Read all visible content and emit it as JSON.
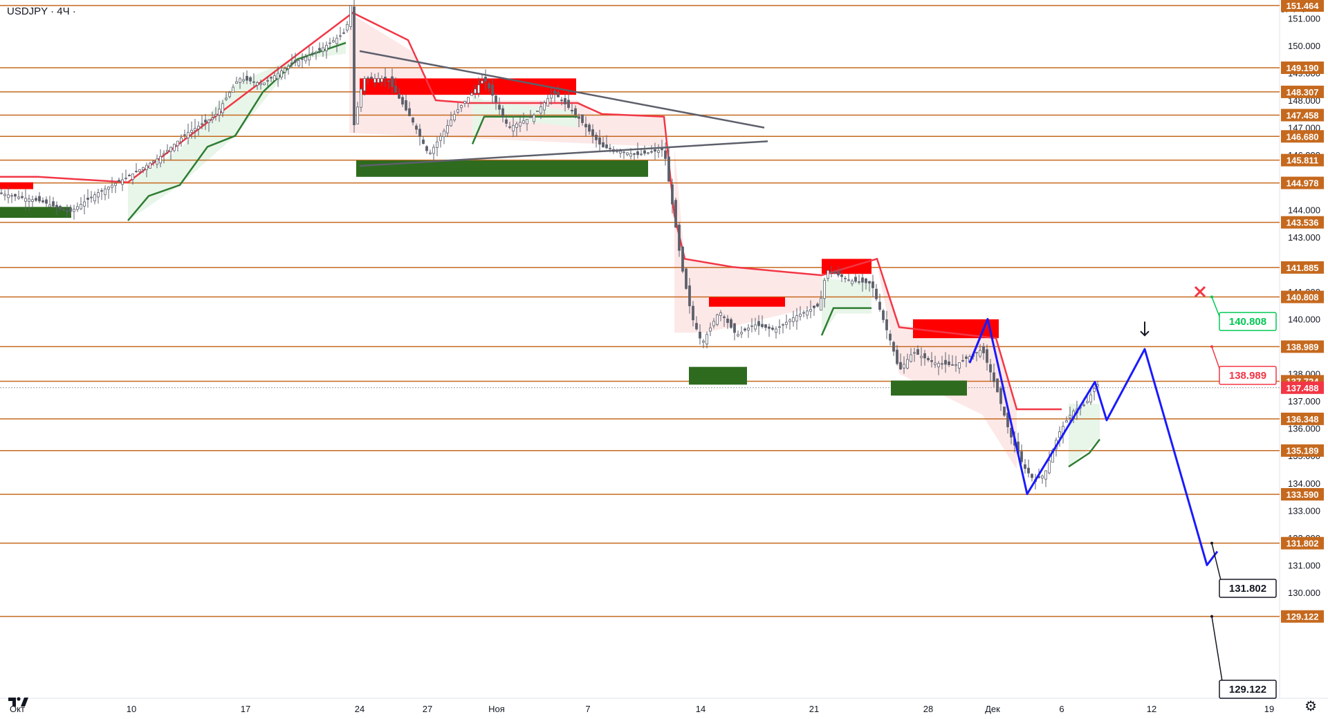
{
  "header": {
    "title": "USDJPY · 4Ч ·",
    "currency": "JPY"
  },
  "colors": {
    "level_line": "#c5691e",
    "label_bg": "#c5691e",
    "current_bg": "#f23645",
    "bear_trail": "#f23645",
    "bull_trail": "#2e7d32",
    "supply_zone": "#ff0000",
    "demand_zone": "#2e6b1f",
    "projection": "#1a1aff",
    "trendline": "#5d606b",
    "candle": "#5d606b"
  },
  "icons": {
    "settings": "gear-icon",
    "logo": "tradingview-logo-icon",
    "down_arrow": "down-arrow-icon",
    "cross": "cross-icon"
  },
  "chart_data": {
    "type": "candlestick",
    "symbol": "USDJPY",
    "timeframe": "4Ч",
    "ylim": [
      129.0,
      152.0
    ],
    "y_ticks": [
      "151.000",
      "150.000",
      "149.000",
      "148.000",
      "147.000",
      "146.000",
      "145.000",
      "144.000",
      "143.000",
      "142.000",
      "141.000",
      "140.000",
      "139.000",
      "138.000",
      "137.000",
      "136.000",
      "135.000",
      "134.000",
      "133.000",
      "132.000",
      "131.000",
      "130.000"
    ],
    "x_ticks": [
      "Окт",
      "10",
      "17",
      "24",
      "27",
      "Ноя",
      "7",
      "14",
      "21",
      "28",
      "Дек",
      "6",
      "12",
      "19"
    ],
    "current_price": "137.488",
    "levels": [
      {
        "price": 151.464,
        "label": "151.464"
      },
      {
        "price": 149.19,
        "label": "149.190"
      },
      {
        "price": 148.307,
        "label": "148.307"
      },
      {
        "price": 147.458,
        "label": "147.458"
      },
      {
        "price": 146.68,
        "label": "146.680"
      },
      {
        "price": 145.811,
        "label": "145.811"
      },
      {
        "price": 144.978,
        "label": "144.978"
      },
      {
        "price": 143.536,
        "label": "143.536"
      },
      {
        "price": 141.885,
        "label": "141.885"
      },
      {
        "price": 140.808,
        "label": "140.808"
      },
      {
        "price": 138.989,
        "label": "138.989"
      },
      {
        "price": 137.724,
        "label": "137.724"
      },
      {
        "price": 136.348,
        "label": "136.348"
      },
      {
        "price": 135.189,
        "label": "135.189"
      },
      {
        "price": 133.59,
        "label": "133.590"
      },
      {
        "price": 131.802,
        "label": "131.802"
      },
      {
        "price": 129.122,
        "label": "129.122"
      }
    ],
    "callouts": [
      {
        "label": "140.808",
        "price": 140.808,
        "color": "#00c853"
      },
      {
        "label": "138.989",
        "price": 138.989,
        "color": "#f23645"
      },
      {
        "label": "131.802",
        "price": 131.802,
        "color": "#131722"
      },
      {
        "label": "129.122",
        "price": 129.122,
        "color": "#131722"
      }
    ],
    "projection_path": [
      {
        "x": "Дек",
        "y": 133.6
      },
      {
        "x": "Дек",
        "y": 137.7
      },
      {
        "x": "Дек",
        "y": 136.3
      },
      {
        "x": "12",
        "y": 138.9
      },
      {
        "x": "12",
        "y": 131.0
      }
    ]
  }
}
